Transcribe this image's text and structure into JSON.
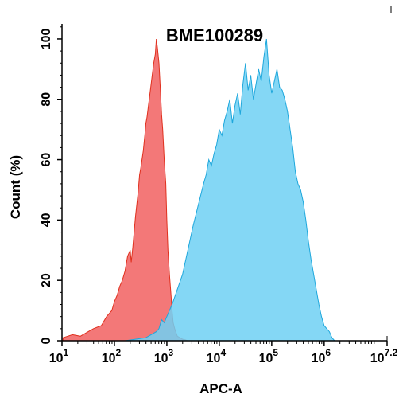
{
  "chart_data": {
    "type": "area",
    "title": "BME100289",
    "xlabel": "APC-A",
    "ylabel": "Count  (%)",
    "x_scale": "log10",
    "xlim": [
      1,
      7.2
    ],
    "ylim": [
      0,
      105
    ],
    "x_ticks": [
      {
        "value": 1,
        "base": "10",
        "exp": "1"
      },
      {
        "value": 2,
        "base": "10",
        "exp": "2"
      },
      {
        "value": 3,
        "base": "10",
        "exp": "3"
      },
      {
        "value": 4,
        "base": "10",
        "exp": "4"
      },
      {
        "value": 5,
        "base": "10",
        "exp": "5"
      },
      {
        "value": 6,
        "base": "10",
        "exp": "6"
      },
      {
        "value": 7.2,
        "base": "10",
        "exp": "7.2"
      }
    ],
    "y_ticks": [
      "0",
      "20",
      "40",
      "60",
      "80",
      "100"
    ],
    "grid": false,
    "legend": "none",
    "series": [
      {
        "color": "#f26d6d",
        "stroke": "#e0301e",
        "x": [
          1.02,
          1.2,
          1.35,
          1.5,
          1.6,
          1.75,
          1.85,
          1.95,
          2.0,
          2.05,
          2.1,
          2.15,
          2.2,
          2.25,
          2.3,
          2.32,
          2.35,
          2.4,
          2.45,
          2.48,
          2.5,
          2.55,
          2.58,
          2.6,
          2.62,
          2.65,
          2.7,
          2.72,
          2.75,
          2.78,
          2.8,
          2.82,
          2.85,
          2.88,
          2.9,
          2.92,
          2.95,
          2.98,
          3.0,
          3.02,
          3.05,
          3.08,
          3.1,
          3.12,
          3.15,
          3.18,
          3.2,
          3.25,
          3.3,
          3.35,
          3.4
        ],
        "y": [
          1,
          2,
          1.5,
          3,
          4,
          5,
          8,
          10,
          13,
          15,
          18,
          20,
          23,
          28,
          30,
          26,
          31,
          41,
          49,
          55,
          57,
          63,
          68,
          72,
          74,
          78,
          85,
          88,
          92,
          95,
          100,
          97,
          92,
          82,
          75,
          70,
          60,
          52,
          40,
          30,
          22,
          15,
          10,
          6,
          4,
          2.5,
          1.5,
          1,
          0.5,
          0.3,
          0
        ]
      },
      {
        "color": "#6fd0f3",
        "stroke": "#1ea7dc",
        "x": [
          2.2,
          2.4,
          2.6,
          2.7,
          2.8,
          2.85,
          2.9,
          2.95,
          3.0,
          3.1,
          3.2,
          3.3,
          3.4,
          3.5,
          3.6,
          3.7,
          3.75,
          3.8,
          3.85,
          3.9,
          3.95,
          4.0,
          4.05,
          4.1,
          4.15,
          4.2,
          4.25,
          4.3,
          4.35,
          4.4,
          4.45,
          4.5,
          4.55,
          4.6,
          4.65,
          4.7,
          4.75,
          4.8,
          4.85,
          4.9,
          4.95,
          5.0,
          5.05,
          5.1,
          5.15,
          5.2,
          5.25,
          5.3,
          5.35,
          5.4,
          5.45,
          5.5,
          5.55,
          5.6,
          5.65,
          5.7,
          5.75,
          5.8,
          5.85,
          5.9,
          5.95,
          6.0,
          6.05,
          6.1,
          6.15,
          6.2
        ],
        "y": [
          0,
          0.5,
          1,
          2,
          3,
          4,
          7,
          6,
          8,
          12,
          17,
          22,
          30,
          38,
          45,
          52,
          55,
          60,
          58,
          62,
          65,
          70,
          68,
          73,
          76,
          80,
          72,
          78,
          82,
          75,
          85,
          92,
          83,
          88,
          80,
          85,
          90,
          86,
          94,
          100,
          88,
          82,
          86,
          90,
          84,
          83,
          80,
          76,
          70,
          64,
          56,
          52,
          50,
          46,
          40,
          33,
          27,
          22,
          17,
          12,
          8,
          5,
          4,
          3,
          1,
          0
        ]
      }
    ]
  }
}
